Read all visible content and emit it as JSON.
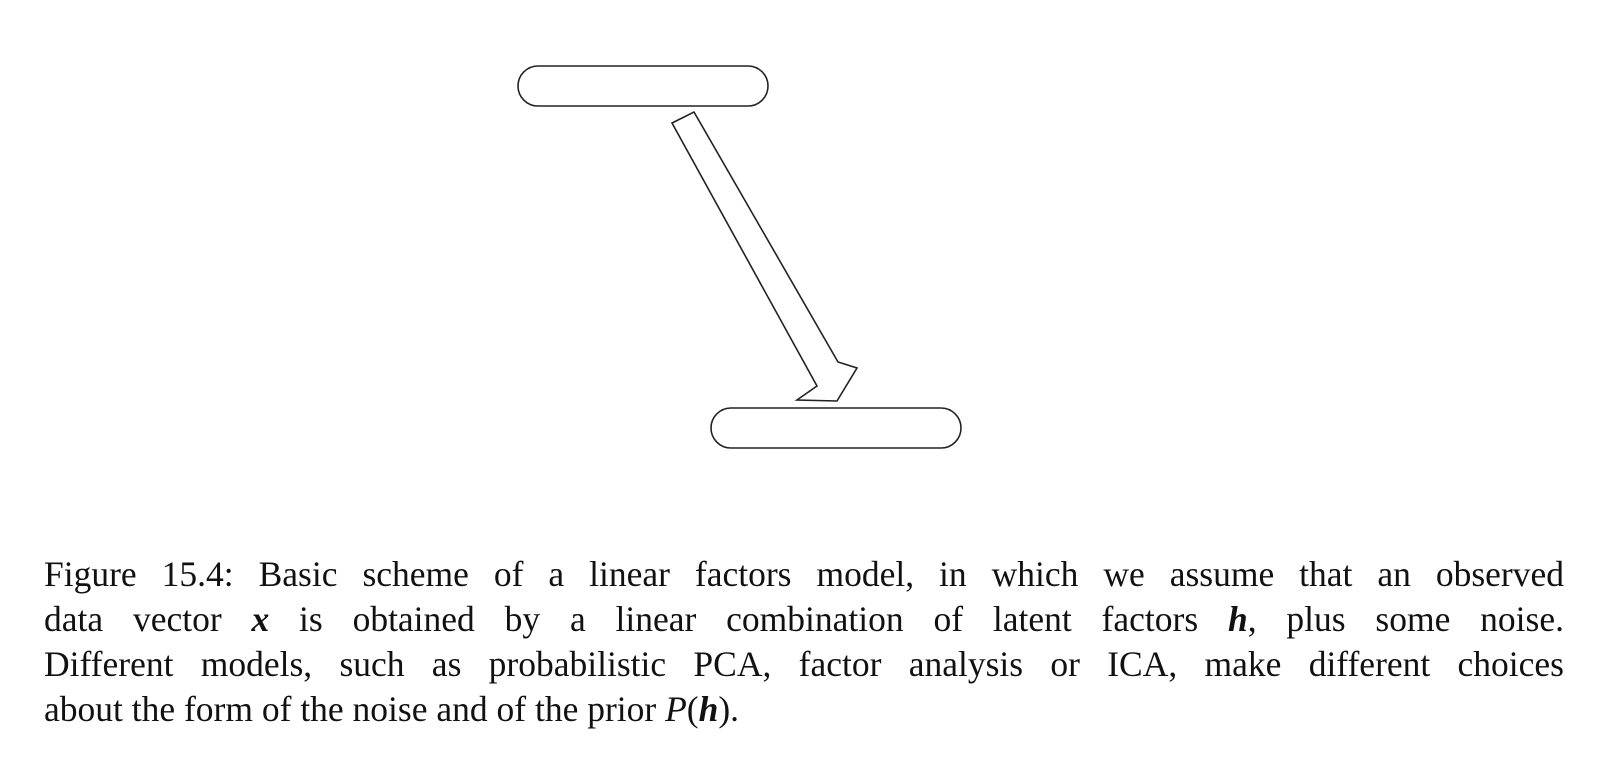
{
  "figure": {
    "top_node_label": "",
    "bottom_node_label": ""
  },
  "caption": {
    "line1": "Figure 15.4: Basic scheme of a linear factors model, in which we assume that an observed",
    "line2_a": "data vector ",
    "line2_var_x": "x",
    "line2_b": " is obtained by a linear combination of latent factors ",
    "line2_var_h": "h",
    "line2_c": ", plus some noise.",
    "line3": "Different models, such as probabilistic PCA, factor analysis or ICA, make different choices",
    "line4_a": "about the form of the noise and of the prior ",
    "line4_var_P": "P",
    "line4_paren_open": "(",
    "line4_var_h": "h",
    "line4_paren_close": ")."
  }
}
